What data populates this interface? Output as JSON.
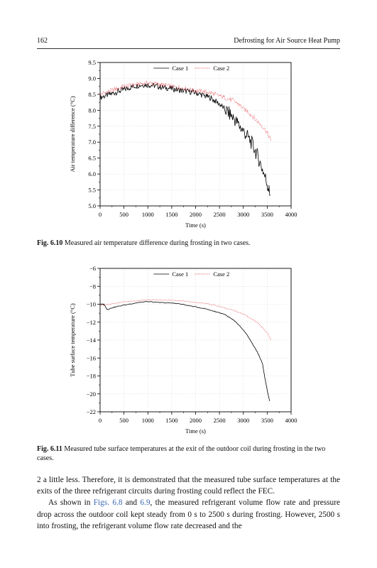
{
  "header": {
    "page_number": "162",
    "running_title": "Defrosting for Air Source Heat Pump"
  },
  "figures": [
    {
      "caption_label": "Fig. 6.10",
      "caption_text": "Measured air temperature difference during frosting in two cases.",
      "chart_data": {
        "type": "line",
        "xlabel": "Time (s)",
        "ylabel": "Air temperature difference (°C)",
        "xlim": [
          0,
          4000
        ],
        "ylim": [
          5.0,
          9.5
        ],
        "x_ticks": [
          "0",
          "500",
          "1000",
          "1500",
          "2000",
          "2500",
          "3000",
          "3500",
          "4000"
        ],
        "y_ticks": [
          "5.0",
          "5.5",
          "6.0",
          "6.5",
          "7.0",
          "7.5",
          "8.0",
          "8.5",
          "9.0",
          "9.5"
        ],
        "legend_position": "top",
        "series": [
          {
            "name": "Case 1",
            "color": "#000000",
            "style": "solid",
            "x": [
              0,
              100,
              200,
              300,
              400,
              500,
              600,
              700,
              800,
              900,
              1000,
              1100,
              1200,
              1300,
              1400,
              1500,
              1600,
              1700,
              1800,
              1900,
              2000,
              2100,
              2200,
              2300,
              2400,
              2500,
              2600,
              2700,
              2800,
              2900,
              3000,
              3100,
              3200,
              3300,
              3400,
              3500,
              3560
            ],
            "y": [
              8.4,
              8.45,
              8.5,
              8.55,
              8.6,
              8.65,
              8.7,
              8.75,
              8.78,
              8.8,
              8.8,
              8.78,
              8.75,
              8.72,
              8.7,
              8.68,
              8.65,
              8.62,
              8.6,
              8.58,
              8.55,
              8.5,
              8.45,
              8.4,
              8.3,
              8.2,
              8.05,
              7.9,
              7.75,
              7.55,
              7.35,
              7.15,
              6.9,
              6.55,
              6.15,
              5.7,
              5.35
            ]
          },
          {
            "name": "Case 2",
            "color": "#e0202b",
            "style": "dotted",
            "x": [
              0,
              100,
              200,
              300,
              400,
              500,
              600,
              700,
              800,
              900,
              1000,
              1100,
              1200,
              1300,
              1400,
              1500,
              1600,
              1700,
              1800,
              1900,
              2000,
              2100,
              2200,
              2300,
              2400,
              2500,
              2600,
              2700,
              2800,
              2900,
              3000,
              3100,
              3200,
              3300,
              3400,
              3500,
              3580
            ],
            "y": [
              8.5,
              8.55,
              8.6,
              8.65,
              8.7,
              8.75,
              8.78,
              8.8,
              8.82,
              8.85,
              8.85,
              8.85,
              8.82,
              8.8,
              8.78,
              8.75,
              8.72,
              8.7,
              8.68,
              8.65,
              8.62,
              8.6,
              8.58,
              8.55,
              8.5,
              8.45,
              8.4,
              8.35,
              8.3,
              8.2,
              8.05,
              7.95,
              7.8,
              7.65,
              7.5,
              7.3,
              7.05
            ]
          }
        ]
      }
    },
    {
      "caption_label": "Fig. 6.11",
      "caption_text": "Measured tube surface temperatures at the exit of the outdoor coil during frosting in the two cases.",
      "chart_data": {
        "type": "line",
        "xlabel": "Time (s)",
        "ylabel": "Tube surface temperature (°C)",
        "xlim": [
          0,
          4000
        ],
        "ylim": [
          -22,
          -6
        ],
        "x_ticks": [
          "0",
          "500",
          "1000",
          "1500",
          "2000",
          "2500",
          "3000",
          "3500",
          "4000"
        ],
        "y_ticks": [
          "−22",
          "−20",
          "−18",
          "−16",
          "−14",
          "−12",
          "−10",
          "−8",
          "−6"
        ],
        "legend_position": "top",
        "series": [
          {
            "name": "Case 1",
            "color": "#000000",
            "style": "solid",
            "x": [
              0,
              80,
              150,
              250,
              400,
              600,
              800,
              1000,
              1200,
              1400,
              1600,
              1800,
              2000,
              2200,
              2400,
              2600,
              2800,
              2900,
              3000,
              3100,
              3200,
              3300,
              3400,
              3450,
              3500,
              3550
            ],
            "y": [
              -10.0,
              -10.0,
              -10.6,
              -10.4,
              -10.2,
              -10.0,
              -9.8,
              -9.7,
              -9.8,
              -9.85,
              -9.9,
              -10.1,
              -10.3,
              -10.5,
              -10.8,
              -11.1,
              -11.8,
              -12.3,
              -12.9,
              -13.6,
              -14.5,
              -15.4,
              -16.6,
              -18.2,
              -19.6,
              -20.8
            ]
          },
          {
            "name": "Case 2",
            "color": "#e0202b",
            "style": "dotted",
            "x": [
              0,
              200,
              400,
              600,
              800,
              1000,
              1200,
              1400,
              1600,
              1800,
              2000,
              2200,
              2400,
              2600,
              2800,
              3000,
              3200,
              3300,
              3400,
              3500,
              3580
            ],
            "y": [
              -10.1,
              -10.0,
              -9.8,
              -9.7,
              -9.6,
              -9.5,
              -9.5,
              -9.55,
              -9.6,
              -9.65,
              -9.8,
              -9.9,
              -10.1,
              -10.4,
              -10.7,
              -11.1,
              -11.7,
              -12.1,
              -12.6,
              -13.2,
              -14.0
            ]
          }
        ]
      }
    }
  ],
  "body": {
    "p1": "2 a little less. Therefore, it is demonstrated that the measured tube surface temperatures at the exits of the three refrigerant circuits during frosting could reflect the FEC.",
    "p2_before": "As shown in ",
    "p2_link1": "Figs. 6.8",
    "p2_and": " and ",
    "p2_link2": "6.9",
    "p2_after": ", the measured refrigerant volume flow rate and pressure drop across the outdoor coil kept steady from 0 s to 2500 s during frosting. However, 2500 s into frosting, the refrigerant volume flow rate decreased and the"
  }
}
